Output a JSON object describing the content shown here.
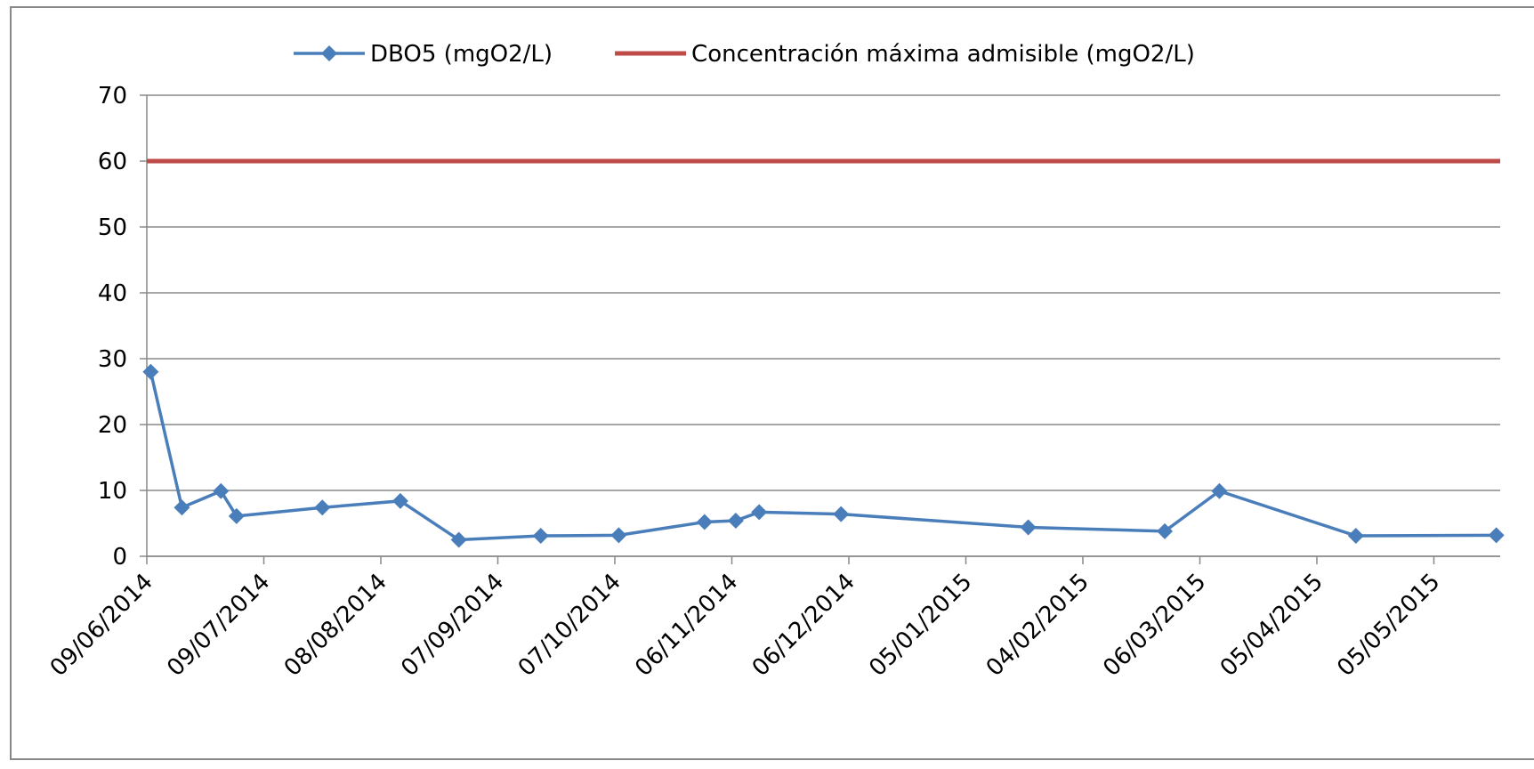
{
  "chart_data": {
    "type": "line",
    "xlim": [
      "09/06/2014",
      "22/05/2015"
    ],
    "xticks": [
      "09/06/2014",
      "09/07/2014",
      "08/08/2014",
      "07/09/2014",
      "07/10/2014",
      "06/11/2014",
      "06/12/2014",
      "05/01/2015",
      "04/02/2015",
      "06/03/2015",
      "05/04/2015",
      "05/05/2015"
    ],
    "ylim": [
      0,
      70
    ],
    "yticks": [
      0,
      10,
      20,
      30,
      40,
      50,
      60,
      70
    ],
    "grid": true,
    "legend": "top",
    "series": [
      {
        "name": "DBO5 (mgO2/L)",
        "color": "#4a7ebb",
        "marker": "diamond",
        "x": [
          "10/06/2014",
          "18/06/2014",
          "28/06/2014",
          "02/07/2014",
          "24/07/2014",
          "13/08/2014",
          "28/08/2014",
          "18/09/2014",
          "08/10/2014",
          "30/10/2014",
          "07/11/2014",
          "13/11/2014",
          "04/12/2014",
          "21/01/2015",
          "25/02/2015",
          "11/03/2015",
          "15/04/2015",
          "21/05/2015"
        ],
        "values": [
          28,
          7.4,
          9.9,
          6.1,
          7.4,
          8.4,
          2.5,
          3.1,
          3.2,
          5.2,
          5.4,
          6.7,
          6.4,
          4.4,
          3.8,
          9.9,
          3.1,
          3.2
        ]
      },
      {
        "name": "Concentración máxima  admisible  (mgO2/L)",
        "color": "#be4b48",
        "x": [
          "09/06/2014",
          "22/05/2015"
        ],
        "values": [
          60,
          60
        ]
      }
    ]
  }
}
